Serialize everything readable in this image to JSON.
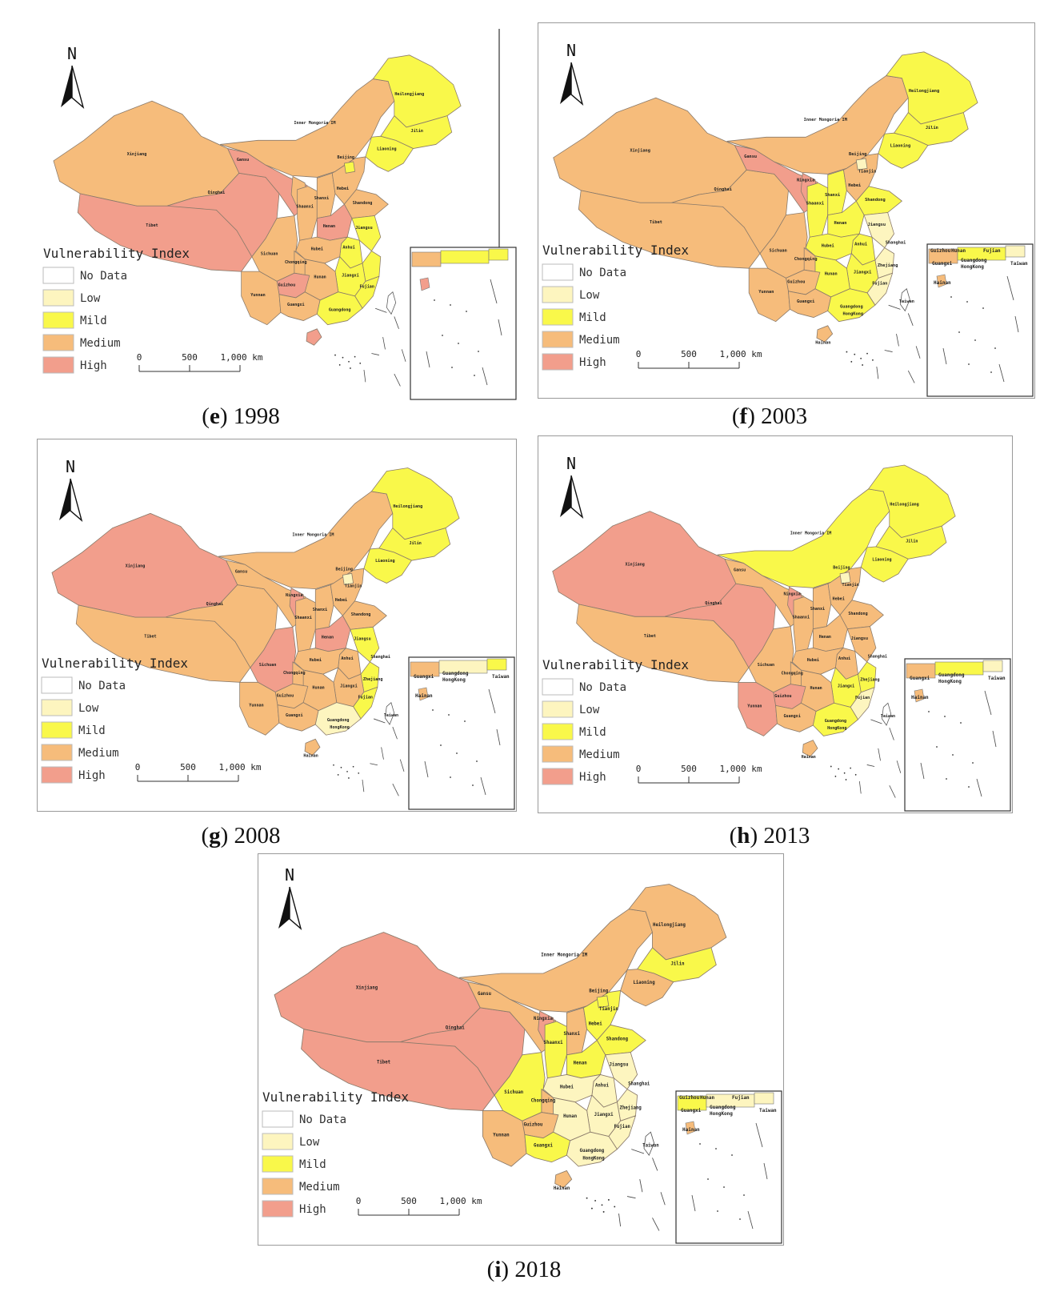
{
  "legend": {
    "title": "Vulnerability Index",
    "classes": [
      {
        "label": "No Data",
        "color": "#ffffff"
      },
      {
        "label": "Low",
        "color": "#fdf5bf"
      },
      {
        "label": "Mild",
        "color": "#f9f84a"
      },
      {
        "label": "Medium",
        "color": "#f6bc7b"
      },
      {
        "label": "High",
        "color": "#f29e8c"
      }
    ]
  },
  "north_label": "N",
  "scale_bar": {
    "ticks": [
      "0",
      "500",
      "1,000 km"
    ]
  },
  "panels": [
    {
      "letter": "e",
      "year": "1998",
      "classes": {
        "Xinjiang": "Medium",
        "Tibet": "High",
        "Qinghai": "High",
        "Gansu": "High",
        "InnerMongolia": "Medium",
        "Heilongjiang": "Mild",
        "Jilin": "Mild",
        "Liaoning": "Mild",
        "Ningxia": "Medium",
        "Shaanxi": "Medium",
        "Shanxi": "Medium",
        "Hebei": "Medium",
        "Beijing": "Mild",
        "Henan": "High",
        "Shandong": "Medium",
        "Sichuan": "Medium",
        "Chongqing": "Medium",
        "Hubei": "Medium",
        "Anhui": "Mild",
        "Jiangsu": "Mild",
        "Yunnan": "Medium",
        "Guizhou": "High",
        "Hunan": "Medium",
        "Jiangxi": "Mild",
        "Zhejiang": "Mild",
        "Guangxi": "Medium",
        "Guangdong": "Mild",
        "Fujian": "Mild",
        "Hainan": "High"
      },
      "labels": {
        "Xinjiang": "Xinjiang",
        "Tibet": "Tibet",
        "Qinghai": "Qinghai",
        "Gansu": "Gansu",
        "InnerMongolia": "Inner Mongoria IM",
        "Heilongjiang": "Heilongjiang",
        "Jilin": "Jilin",
        "Liaoning": "Liaoning",
        "Shaanxi": "Shaanxi",
        "Shanxi": "Shanxi",
        "Hebei": "Hebei",
        "Beijing": "Beijing",
        "Henan": "Henan",
        "Shandong": "Shandong",
        "Sichuan": "Sichuan",
        "Chongqing": "Chongqing",
        "Hubei": "Hubei",
        "Anhui": "Anhui",
        "Jiangsu": "Jiangsu",
        "Yunnan": "Yunnan",
        "Guizhou": "Guizhou",
        "Hunan": "Hunan",
        "Jiangxi": "Jiangxi",
        "Guangxi": "Guangxi",
        "Guangdong": "Guangdong",
        "Fujian": "Fujian"
      }
    },
    {
      "letter": "f",
      "year": "2003",
      "classes": {
        "Xinjiang": "Medium",
        "Tibet": "Medium",
        "Qinghai": "Medium",
        "Gansu": "High",
        "InnerMongolia": "Medium",
        "Heilongjiang": "Mild",
        "Jilin": "Mild",
        "Liaoning": "Mild",
        "Ningxia": "High",
        "Shaanxi": "Mild",
        "Shanxi": "Mild",
        "Hebei": "Medium",
        "Beijing": "Low",
        "Henan": "Mild",
        "Shandong": "Mild",
        "Sichuan": "Medium",
        "Chongqing": "Medium",
        "Hubei": "Mild",
        "Anhui": "Mild",
        "Jiangsu": "Low",
        "Yunnan": "Medium",
        "Guizhou": "Medium",
        "Hunan": "Mild",
        "Jiangxi": "Mild",
        "Zhejiang": "Low",
        "Guangxi": "Medium",
        "Guangdong": "Mild",
        "Fujian": "Low",
        "Hainan": "Medium"
      },
      "labels": {
        "Xinjiang": "Xinjiang",
        "Tibet": "Tibet",
        "Qinghai": "Qinghai",
        "Gansu": "Gansu",
        "InnerMongolia": "Inner Mongoria IM",
        "Heilongjiang": "Heilongjiang",
        "Jilin": "Jilin",
        "Liaoning": "Liaoning",
        "Ningxia": "Ningxia",
        "Shaanxi": "Shaanxi",
        "Shanxi": "Shanxi",
        "Hebei": "Hebei",
        "Beijing": "Beijing",
        "Tianjin": "Tianjin",
        "Henan": "Henan",
        "Shandong": "Shandong",
        "Sichuan": "Sichuan",
        "Chongqing": "Chongqing",
        "Hubei": "Hubei",
        "Anhui": "Anhui",
        "Jiangsu": "Jiangsu",
        "Shanghai": "Shanghai",
        "Yunnan": "Yunnan",
        "Guizhou": "Guizhou",
        "Hunan": "Hunan",
        "Jiangxi": "Jiangxi",
        "Zhejiang": "Zhejiang",
        "Guangxi": "Guangxi",
        "Guangdong": "Guangdong",
        "HongKong": "HongKong",
        "Fujian": "Fujian",
        "Taiwan": "Taiwan",
        "Hainan": "Hainan"
      },
      "inset_labels": [
        "Guizhou",
        "Hunan",
        "Fujian",
        "Guangxi",
        "Guangdong",
        "HongKong",
        "Taiwan",
        "Hainan"
      ]
    },
    {
      "letter": "g",
      "year": "2008",
      "classes": {
        "Xinjiang": "High",
        "Tibet": "Medium",
        "Qinghai": "Medium",
        "Gansu": "Medium",
        "InnerMongolia": "Medium",
        "Heilongjiang": "Mild",
        "Jilin": "Mild",
        "Liaoning": "Mild",
        "Ningxia": "High",
        "Shaanxi": "Medium",
        "Shanxi": "Medium",
        "Hebei": "Medium",
        "Beijing": "Low",
        "Henan": "High",
        "Shandong": "Medium",
        "Sichuan": "High",
        "Chongqing": "Medium",
        "Hubei": "Medium",
        "Anhui": "Medium",
        "Jiangsu": "Mild",
        "Yunnan": "Medium",
        "Guizhou": "Medium",
        "Hunan": "Medium",
        "Jiangxi": "Medium",
        "Zhejiang": "Mild",
        "Guangxi": "Medium",
        "Guangdong": "Low",
        "Fujian": "Mild",
        "Hainan": "Medium"
      },
      "labels": {
        "Xinjiang": "Xinjiang",
        "Tibet": "Tibet",
        "Qinghai": "Qinghai",
        "Gansu": "Gansu",
        "InnerMongolia": "Inner Mongoria IM",
        "Heilongjiang": "Heilongjiang",
        "Jilin": "Jilin",
        "Liaoning": "Liaoning",
        "Ningxia": "Ningxia",
        "Shaanxi": "Shaanxi",
        "Shanxi": "Shanxi",
        "Hebei": "Hebei",
        "Beijing": "Beijing",
        "Tianjin": "Tianjin",
        "Henan": "Henan",
        "Shandong": "Shandong",
        "Sichuan": "Sichuan",
        "Chongqing": "Chongqing",
        "Hubei": "Hubei",
        "Anhui": "Anhui",
        "Jiangsu": "Jiangsu",
        "Shanghai": "Shanghai",
        "Yunnan": "Yunnan",
        "Guizhou": "Guizhou",
        "Hunan": "Hunan",
        "Jiangxi": "Jiangxi",
        "Zhejiang": "Zhejiang",
        "Guangxi": "Guangxi",
        "Guangdong": "Guangdong",
        "HongKong": "HongKong",
        "Fujian": "Fujian",
        "Taiwan": "Taiwan",
        "Hainan": "Hainan"
      },
      "inset_labels": [
        "Guangxi",
        "Guangdong",
        "HongKong",
        "Taiwan",
        "Hainan"
      ]
    },
    {
      "letter": "h",
      "year": "2013",
      "classes": {
        "Xinjiang": "High",
        "Tibet": "Medium",
        "Qinghai": "High",
        "Gansu": "Medium",
        "InnerMongolia": "Mild",
        "Heilongjiang": "Mild",
        "Jilin": "Mild",
        "Liaoning": "Mild",
        "Ningxia": "High",
        "Shaanxi": "Medium",
        "Shanxi": "Medium",
        "Hebei": "Medium",
        "Beijing": "Low",
        "Henan": "Medium",
        "Shandong": "Medium",
        "Sichuan": "Medium",
        "Chongqing": "Medium",
        "Hubei": "Medium",
        "Anhui": "Medium",
        "Jiangsu": "Medium",
        "Yunnan": "High",
        "Guizhou": "High",
        "Hunan": "Medium",
        "Jiangxi": "Mild",
        "Zhejiang": "Mild",
        "Guangxi": "Medium",
        "Guangdong": "Mild",
        "Fujian": "Low",
        "Hainan": "Medium"
      },
      "labels": {
        "Xinjiang": "Xinjiang",
        "Tibet": "Tibet",
        "Qinghai": "Qinghai",
        "Gansu": "Gansu",
        "InnerMongolia": "Inner Mongoria IM",
        "Heilongjiang": "Heilongjiang",
        "Jilin": "Jilin",
        "Liaoning": "Liaoning",
        "Ningxia": "Ningxia",
        "Shaanxi": "Shaanxi",
        "Shanxi": "Shanxi",
        "Hebei": "Hebei",
        "Beijing": "Beijing",
        "Tianjin": "Tianjin",
        "Henan": "Henan",
        "Shandong": "Shandong",
        "Sichuan": "Sichuan",
        "Chongqing": "Chongqing",
        "Hubei": "Hubei",
        "Anhui": "Anhui",
        "Jiangsu": "Jiangsu",
        "Shanghai": "Shanghai",
        "Yunnan": "Yunnan",
        "Guizhou": "Guizhou",
        "Hunan": "Hunan",
        "Jiangxi": "Jiangxi",
        "Zhejiang": "Zhejiang",
        "Guangxi": "Guangxi",
        "Guangdong": "Guangdong",
        "HongKong": "HongKong",
        "Fujian": "Fujian",
        "Taiwan": "Taiwan",
        "Hainan": "Hainan"
      },
      "inset_labels": [
        "Guangxi",
        "Guangdong",
        "HongKong",
        "Taiwan",
        "Hainan"
      ]
    },
    {
      "letter": "i",
      "year": "2018",
      "classes": {
        "Xinjiang": "High",
        "Tibet": "High",
        "Qinghai": "High",
        "Gansu": "Medium",
        "InnerMongolia": "Medium",
        "Heilongjiang": "Medium",
        "Jilin": "Mild",
        "Liaoning": "Medium",
        "Ningxia": "High",
        "Shaanxi": "Mild",
        "Shanxi": "Medium",
        "Hebei": "Mild",
        "Beijing": "Mild",
        "Henan": "Mild",
        "Shandong": "Mild",
        "Sichuan": "Mild",
        "Chongqing": "Medium",
        "Hubei": "Low",
        "Anhui": "Low",
        "Jiangsu": "Low",
        "Yunnan": "Medium",
        "Guizhou": "Medium",
        "Hunan": "Low",
        "Jiangxi": "Low",
        "Zhejiang": "Low",
        "Guangxi": "Mild",
        "Guangdong": "Low",
        "Fujian": "Low",
        "Hainan": "Medium"
      },
      "labels": {
        "Xinjiang": "Xinjiang",
        "Tibet": "Tibet",
        "Qinghai": "Qinghai",
        "Gansu": "Gansu",
        "InnerMongolia": "Inner Mongoria IM",
        "Heilongjiang": "Heilongjiang",
        "Jilin": "Jilin",
        "Liaoning": "Liaoning",
        "Ningxia": "Ningxia",
        "Shaanxi": "Shaanxi",
        "Shanxi": "Shanxi",
        "Hebei": "Hebei",
        "Beijing": "Beijing",
        "Tianjin": "Tianjin",
        "Henan": "Henan",
        "Shandong": "Shandong",
        "Sichuan": "Sichuan",
        "Chongqing": "Chongqing",
        "Hubei": "Hubei",
        "Anhui": "Anhui",
        "Jiangsu": "Jiangsu",
        "Shanghai": "Shanghai",
        "Yunnan": "Yunnan",
        "Guizhou": "Guizhou",
        "Hunan": "Hunan",
        "Jiangxi": "Jiangxi",
        "Zhejiang": "Zhejiang",
        "Guangxi": "Guangxi",
        "Guangdong": "Guangdong",
        "HongKong": "HongKong",
        "Fujian": "Fujian",
        "Taiwan": "Taiwan",
        "Hainan": "Hainan"
      },
      "inset_labels": [
        "Guizhou",
        "Hunan",
        "Fujian",
        "Guangxi",
        "Guangdong",
        "HongKong",
        "Taiwan",
        "Hainan"
      ]
    }
  ]
}
